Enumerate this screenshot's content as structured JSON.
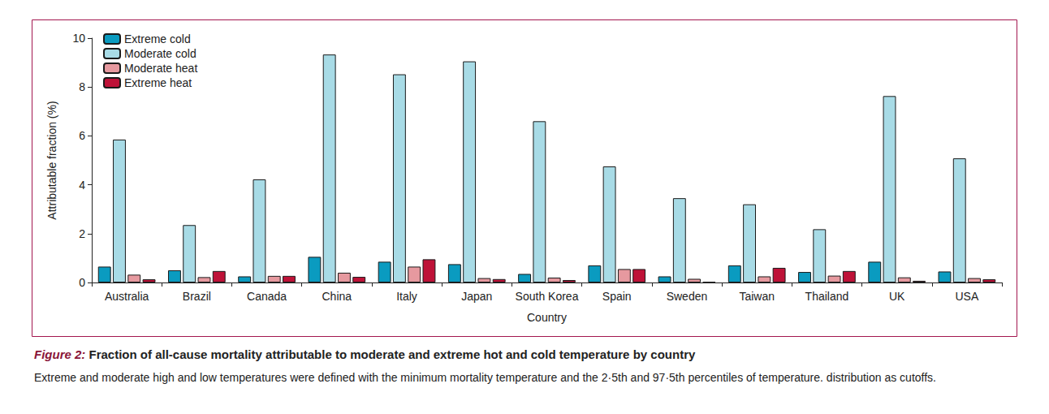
{
  "chart_data": {
    "type": "bar",
    "title": "Figure 2: Fraction of all-cause mortality attributable to moderate and extreme hot and cold temperature by country",
    "subtitle": "Extreme and moderate high and low temperatures were defined with the minimum mortality temperature and the 2·5th and 97·5th percentiles of temperature. distribution as cutoffs.",
    "x_label": "Country",
    "y_label": "Attributable fraction (%)",
    "categories": [
      "Australia",
      "Brazil",
      "Canada",
      "China",
      "Italy",
      "Japan",
      "South Korea",
      "Spain",
      "Sweden",
      "Taiwan",
      "Thailand",
      "UK",
      "USA"
    ],
    "series": [
      {
        "name": "Extreme cold",
        "color": "#0a9bc0",
        "values": [
          0.65,
          0.5,
          0.25,
          1.05,
          0.85,
          0.75,
          0.35,
          0.7,
          0.25,
          0.7,
          0.43,
          0.85,
          0.45
        ]
      },
      {
        "name": "Moderate cold",
        "color": "#a8dbe6",
        "values": [
          5.85,
          2.35,
          4.22,
          9.33,
          8.52,
          9.05,
          6.6,
          4.75,
          3.45,
          3.2,
          2.18,
          7.63,
          5.08
        ]
      },
      {
        "name": "Moderate heat",
        "color": "#e6999f",
        "values": [
          0.32,
          0.22,
          0.27,
          0.4,
          0.65,
          0.18,
          0.2,
          0.55,
          0.15,
          0.25,
          0.28,
          0.21,
          0.18
        ]
      },
      {
        "name": "Extreme heat",
        "color": "#be1238",
        "values": [
          0.13,
          0.47,
          0.27,
          0.23,
          0.95,
          0.14,
          0.1,
          0.55,
          0.02,
          0.6,
          0.47,
          0.07,
          0.13
        ]
      }
    ],
    "ylim": [
      0,
      10
    ],
    "yticks": [
      0,
      2,
      4,
      6,
      8,
      10
    ],
    "grid": false,
    "legend": "upper left"
  }
}
